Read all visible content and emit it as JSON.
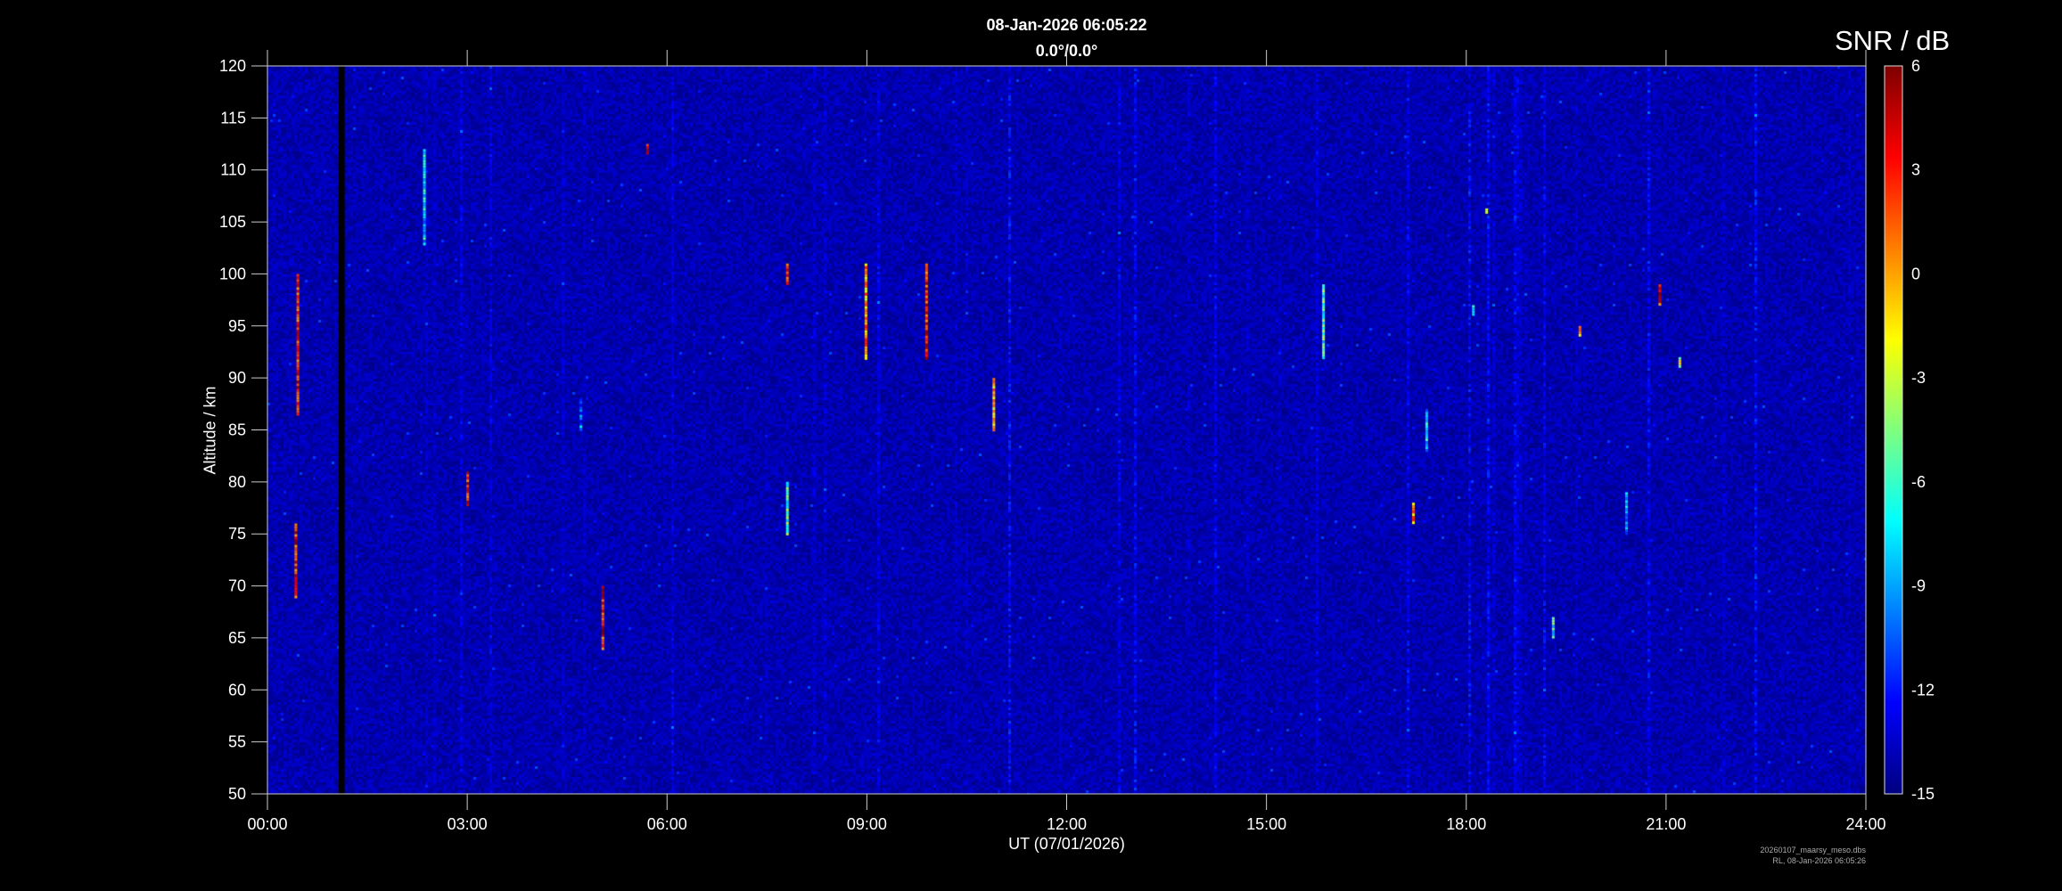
{
  "chart_data": {
    "type": "heatmap",
    "title": "08-Jan-2026 06:05:22",
    "subtitle": "0.0°/0.0°",
    "xlabel": "UT (07/01/2026)",
    "ylabel": "Altitude / km",
    "colorbar_label": "SNR / dB",
    "colormap": "jet",
    "xlim": [
      0,
      24
    ],
    "ylim": [
      50,
      120
    ],
    "clim": [
      -15,
      6
    ],
    "x_ticks": [
      "00:00",
      "03:00",
      "06:00",
      "09:00",
      "12:00",
      "15:00",
      "18:00",
      "21:00",
      "24:00"
    ],
    "y_ticks": [
      "50",
      "55",
      "60",
      "65",
      "70",
      "75",
      "80",
      "85",
      "90",
      "95",
      "100",
      "105",
      "110",
      "115",
      "120"
    ],
    "colorbar_ticks": [
      "6",
      "3",
      "0",
      "-3",
      "-6",
      "-9",
      "-12",
      "-15"
    ],
    "background_snr": -14,
    "data_gap_hours": [
      1.07,
      1.16
    ],
    "echoes": [
      {
        "t": 0.45,
        "alt": [
          86.6,
          100
        ],
        "snr": 3
      },
      {
        "t": 0.42,
        "alt": [
          69,
          76
        ],
        "snr": 3
      },
      {
        "t": 2.35,
        "alt": [
          103,
          112
        ],
        "snr": -8
      },
      {
        "t": 3.0,
        "alt": [
          77.7,
          81
        ],
        "snr": 3
      },
      {
        "t": 4.7,
        "alt": [
          85,
          88
        ],
        "snr": -10
      },
      {
        "t": 5.03,
        "alt": [
          64,
          70
        ],
        "snr": 3
      },
      {
        "t": 5.7,
        "alt": [
          111.6,
          112.5
        ],
        "snr": 3
      },
      {
        "t": 7.8,
        "alt": [
          99,
          101
        ],
        "snr": 3
      },
      {
        "t": 7.8,
        "alt": [
          75,
          80
        ],
        "snr": -6
      },
      {
        "t": 8.98,
        "alt": [
          92,
          101
        ],
        "snr": 0
      },
      {
        "t": 9.89,
        "alt": [
          92,
          101
        ],
        "snr": 3
      },
      {
        "t": 10.9,
        "alt": [
          85,
          90
        ],
        "snr": 0
      },
      {
        "t": 15.85,
        "alt": [
          92,
          99
        ],
        "snr": -6
      },
      {
        "t": 17.2,
        "alt": [
          76,
          78
        ],
        "snr": 0
      },
      {
        "t": 17.4,
        "alt": [
          83,
          87
        ],
        "snr": -8
      },
      {
        "t": 18.1,
        "alt": [
          96,
          97
        ],
        "snr": -8
      },
      {
        "t": 18.3,
        "alt": [
          105.8,
          106.3
        ],
        "snr": 0
      },
      {
        "t": 19.3,
        "alt": [
          65,
          67
        ],
        "snr": -6
      },
      {
        "t": 19.7,
        "alt": [
          94,
          95
        ],
        "snr": 0
      },
      {
        "t": 20.4,
        "alt": [
          75,
          79
        ],
        "snr": -9
      },
      {
        "t": 20.9,
        "alt": [
          97,
          99
        ],
        "snr": 3
      },
      {
        "t": 21.2,
        "alt": [
          91,
          92
        ],
        "snr": -3
      }
    ]
  },
  "footer": {
    "file": "20260107_maarsy_meso.dbs",
    "stamp": "RL, 08-Jan-2026 06:05:26"
  }
}
